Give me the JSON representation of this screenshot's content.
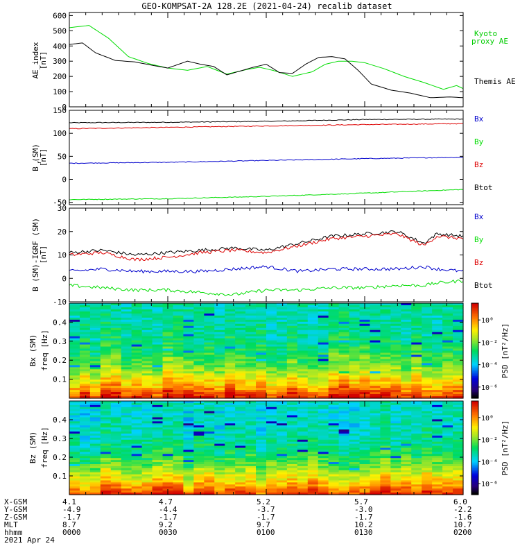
{
  "title": "GEO-KOMPSAT-2A 128.2E (2021-04-24) recalib dataset",
  "colors": {
    "black": "#000000",
    "green": "#00dd00",
    "red": "#dd0000",
    "blue": "#0000cc",
    "label_green": "#00cc00"
  },
  "chart_data": [
    {
      "type": "line",
      "panel": "ae",
      "ylabel": "AE_index",
      "yunit": "[nT]",
      "ylim": [
        0,
        620
      ],
      "yticks": [
        0,
        100,
        200,
        300,
        400,
        500,
        600
      ],
      "xlim": [
        0,
        120
      ],
      "x_unit": "minutes since 0000 UT",
      "series": [
        {
          "name": "Kyoto proxy AE",
          "legend_lines": [
            "Kyoto",
            "proxy AE"
          ],
          "color": "green",
          "x": [
            0,
            6,
            12,
            18,
            24,
            30,
            36,
            42,
            48,
            54,
            58,
            62,
            68,
            74,
            78,
            82,
            86,
            90,
            96,
            102,
            108,
            114,
            118,
            120
          ],
          "y": [
            520,
            535,
            450,
            330,
            285,
            255,
            240,
            265,
            215,
            245,
            260,
            240,
            200,
            230,
            280,
            300,
            300,
            290,
            250,
            200,
            160,
            115,
            140,
            120
          ]
        },
        {
          "name": "Themis AE",
          "legend_lines": [
            "Themis AE"
          ],
          "color": "black",
          "x": [
            0,
            4,
            8,
            14,
            20,
            26,
            30,
            36,
            40,
            44,
            48,
            52,
            56,
            60,
            64,
            68,
            72,
            76,
            80,
            84,
            88,
            92,
            98,
            104,
            110,
            116,
            120
          ],
          "y": [
            410,
            420,
            355,
            305,
            295,
            270,
            255,
            300,
            280,
            265,
            210,
            235,
            260,
            280,
            225,
            220,
            280,
            325,
            330,
            315,
            240,
            150,
            110,
            90,
            60,
            65,
            60
          ]
        }
      ]
    },
    {
      "type": "line",
      "panel": "b",
      "ylabel": "B (SM)",
      "ylabel_subscript": "r",
      "yunit": "[nT]",
      "ylim": [
        -55,
        150
      ],
      "yticks": [
        -50,
        0,
        50,
        100,
        150
      ],
      "xlim": [
        0,
        120
      ],
      "series": [
        {
          "name": "Btot",
          "color": "black",
          "x": [
            0,
            30,
            60,
            90,
            120
          ],
          "y": [
            123,
            124,
            126,
            130,
            131
          ]
        },
        {
          "name": "Bz",
          "color": "red",
          "x": [
            0,
            30,
            60,
            90,
            120
          ],
          "y": [
            110,
            113,
            116,
            119,
            121
          ]
        },
        {
          "name": "Bx",
          "color": "blue",
          "x": [
            0,
            30,
            60,
            90,
            120
          ],
          "y": [
            35,
            37,
            41,
            45,
            48
          ]
        },
        {
          "name": "By",
          "color": "green",
          "x": [
            0,
            30,
            60,
            90,
            120
          ],
          "y": [
            -44,
            -42,
            -37,
            -30,
            -22
          ]
        }
      ],
      "legend": [
        {
          "label": "Bx",
          "color": "blue"
        },
        {
          "label": "By",
          "color": "green"
        },
        {
          "label": "Bz",
          "color": "red"
        },
        {
          "label": "Btot",
          "color": "black"
        }
      ]
    },
    {
      "type": "line",
      "panel": "dB",
      "ylabel": "B (SM)-IGRF (SM)",
      "yunit": "[nT]",
      "ylim": [
        -10,
        30
      ],
      "yticks": [
        -10,
        0,
        10,
        20,
        30
      ],
      "xlim": [
        0,
        120
      ],
      "series": [
        {
          "name": "Btot",
          "color": "black",
          "x": [
            0,
            10,
            20,
            30,
            40,
            50,
            60,
            70,
            80,
            90,
            100,
            108,
            112,
            120
          ],
          "y": [
            11,
            12,
            10,
            11,
            12,
            13,
            12,
            15,
            18,
            19,
            20,
            15,
            19,
            18
          ]
        },
        {
          "name": "Bz",
          "color": "red",
          "x": [
            0,
            10,
            20,
            30,
            40,
            50,
            60,
            70,
            80,
            90,
            100,
            108,
            112,
            120
          ],
          "y": [
            10,
            11,
            8,
            9,
            11,
            12,
            11,
            14,
            17,
            18,
            19,
            14,
            18,
            17
          ]
        },
        {
          "name": "Bx",
          "color": "blue",
          "x": [
            0,
            10,
            20,
            30,
            40,
            50,
            60,
            70,
            80,
            90,
            100,
            108,
            112,
            120
          ],
          "y": [
            3,
            4,
            3,
            3,
            3,
            4,
            5,
            3,
            4,
            4,
            4,
            5,
            4,
            3
          ]
        },
        {
          "name": "By",
          "color": "green",
          "x": [
            0,
            10,
            20,
            30,
            40,
            50,
            60,
            70,
            80,
            90,
            100,
            108,
            112,
            120
          ],
          "y": [
            -3,
            -4,
            -5,
            -5,
            -6,
            -7,
            -5,
            -5,
            -4,
            -4,
            -3,
            -3,
            -2,
            -1
          ]
        }
      ],
      "legend": [
        {
          "label": "Bx",
          "color": "blue"
        },
        {
          "label": "By",
          "color": "green"
        },
        {
          "label": "Bz",
          "color": "red"
        },
        {
          "label": "Btot",
          "color": "black"
        }
      ]
    },
    {
      "type": "heatmap",
      "panel": "bx-spec",
      "ylabel": "Bx (SM)",
      "ylabel2": "freq [Hz]",
      "ylim": [
        0,
        0.5
      ],
      "yticks": [
        0.1,
        0.2,
        0.3,
        0.4
      ],
      "colorbar_label": "PSD [nT²/Hz]",
      "colorbar_ticks": [
        "10⁰",
        "10⁻²",
        "10⁻⁴",
        "10⁻⁶"
      ],
      "colorbar_log_range": [
        -7,
        1.5
      ]
    },
    {
      "type": "heatmap",
      "panel": "bz-spec",
      "ylabel": "Bz (SM)",
      "ylabel2": "freq [Hz]",
      "ylim": [
        0,
        0.5
      ],
      "yticks": [
        0.1,
        0.2,
        0.3,
        0.4
      ],
      "colorbar_label": "PSD [nT²/Hz]",
      "colorbar_ticks": [
        "10⁰",
        "10⁻²",
        "10⁻⁴",
        "10⁻⁶"
      ],
      "colorbar_log_range": [
        -7,
        1.5
      ]
    }
  ],
  "ephemeris": {
    "row_labels": [
      "X-GSM",
      "Y-GSM",
      "Z-GSM",
      "MLT",
      "hhmm",
      "2021 Apr 24"
    ],
    "columns": [
      {
        "values": [
          "4.1",
          "-4.9",
          "-1.7",
          "8.7",
          "0000"
        ]
      },
      {
        "values": [
          "4.7",
          "-4.4",
          "-1.7",
          "9.2",
          "0030"
        ]
      },
      {
        "values": [
          "5.2",
          "-3.7",
          "-1.7",
          "9.7",
          "0100"
        ]
      },
      {
        "values": [
          "5.7",
          "-3.0",
          "-1.7",
          "10.2",
          "0130"
        ]
      },
      {
        "values": [
          "6.0",
          "-2.2",
          "-1.6",
          "10.7",
          "0200"
        ]
      }
    ]
  }
}
